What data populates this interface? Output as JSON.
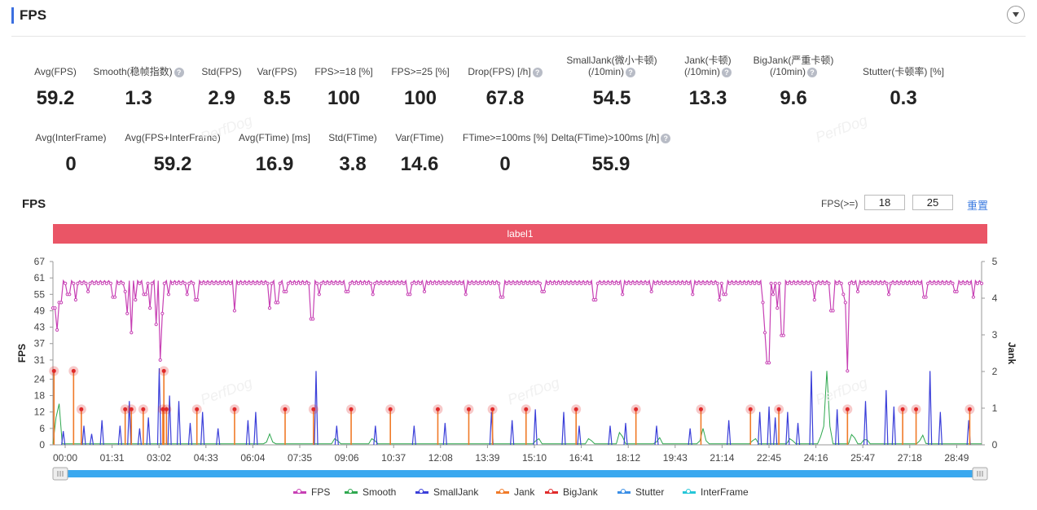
{
  "header": {
    "title": "FPS"
  },
  "stats_row1": [
    {
      "label": "Avg(FPS)",
      "value": "59.2",
      "help": false
    },
    {
      "label": "Smooth(稳帧指数)",
      "value": "1.3",
      "help": true
    },
    {
      "label": "Std(FPS)",
      "value": "2.9",
      "help": false
    },
    {
      "label": "Var(FPS)",
      "value": "8.5",
      "help": false
    },
    {
      "label": "FPS>=18 [%]",
      "value": "100",
      "help": false
    },
    {
      "label": "FPS>=25 [%]",
      "value": "100",
      "help": false
    },
    {
      "label": "Drop(FPS) [/h]",
      "value": "67.8",
      "help": true
    },
    {
      "label": "SmallJank(微小卡顿)",
      "label2": "(/10min)",
      "value": "54.5",
      "help": true
    },
    {
      "label": "Jank(卡顿)",
      "label2": "(/10min)",
      "value": "13.3",
      "help": true
    },
    {
      "label": "BigJank(严重卡顿)",
      "label2": "(/10min)",
      "value": "9.6",
      "help": true
    },
    {
      "label": "Stutter(卡顿率) [%]",
      "value": "0.3",
      "help": false
    }
  ],
  "stats_row2": [
    {
      "label": "Avg(InterFrame)",
      "value": "0",
      "help": false
    },
    {
      "label": "Avg(FPS+InterFrame)",
      "value": "59.2",
      "help": false
    },
    {
      "label": "Avg(FTime) [ms]",
      "value": "16.9",
      "help": false
    },
    {
      "label": "Std(FTime)",
      "value": "3.8",
      "help": false
    },
    {
      "label": "Var(FTime)",
      "value": "14.6",
      "help": false
    },
    {
      "label": "FTime>=100ms [%]",
      "value": "0",
      "help": false
    },
    {
      "label": "Delta(FTime)>100ms [/h]",
      "value": "55.9",
      "help": true
    }
  ],
  "help_glyph": "?",
  "watermark": "PerfDog",
  "chart_section": {
    "title": "FPS",
    "threshold_label": "FPS(>=)",
    "threshold_1": "18",
    "threshold_2": "25",
    "reset_label": "重置",
    "band_label": "label1"
  },
  "chart_data": {
    "type": "line",
    "y_left_label": "FPS",
    "y_right_label": "Jank",
    "y_left_ticks": [
      "0",
      "6",
      "12",
      "18",
      "24",
      "31",
      "37",
      "43",
      "49",
      "55",
      "61",
      "67"
    ],
    "y_right_ticks": [
      "0",
      "1",
      "2",
      "3",
      "4",
      "5"
    ],
    "ylim_left": [
      0,
      67
    ],
    "ylim_right": [
      0,
      5
    ],
    "x_ticks": [
      "00:00",
      "01:31",
      "03:02",
      "04:33",
      "06:04",
      "07:35",
      "09:06",
      "10:37",
      "12:08",
      "13:39",
      "15:10",
      "16:41",
      "18:12",
      "19:43",
      "21:14",
      "22:45",
      "24:16",
      "25:47",
      "27:18",
      "28:49"
    ],
    "x_range_seconds": [
      0,
      1800
    ],
    "fps_baseline": 60,
    "fps_dips": [
      {
        "t": 2,
        "v": 50
      },
      {
        "t": 8,
        "v": 42
      },
      {
        "t": 14,
        "v": 52
      },
      {
        "t": 30,
        "v": 55
      },
      {
        "t": 45,
        "v": 53
      },
      {
        "t": 68,
        "v": 56
      },
      {
        "t": 118,
        "v": 54
      },
      {
        "t": 140,
        "v": 56
      },
      {
        "t": 145,
        "v": 48
      },
      {
        "t": 152,
        "v": 41
      },
      {
        "t": 160,
        "v": 53
      },
      {
        "t": 178,
        "v": 55
      },
      {
        "t": 188,
        "v": 50
      },
      {
        "t": 200,
        "v": 44
      },
      {
        "t": 208,
        "v": 31
      },
      {
        "t": 213,
        "v": 48
      },
      {
        "t": 224,
        "v": 55
      },
      {
        "t": 260,
        "v": 55
      },
      {
        "t": 278,
        "v": 53
      },
      {
        "t": 352,
        "v": 49
      },
      {
        "t": 420,
        "v": 50
      },
      {
        "t": 434,
        "v": 52
      },
      {
        "t": 450,
        "v": 56
      },
      {
        "t": 502,
        "v": 46
      },
      {
        "t": 515,
        "v": 55
      },
      {
        "t": 570,
        "v": 56
      },
      {
        "t": 620,
        "v": 55
      },
      {
        "t": 690,
        "v": 55
      },
      {
        "t": 720,
        "v": 56
      },
      {
        "t": 800,
        "v": 55
      },
      {
        "t": 870,
        "v": 54
      },
      {
        "t": 950,
        "v": 56
      },
      {
        "t": 1050,
        "v": 53
      },
      {
        "t": 1105,
        "v": 55
      },
      {
        "t": 1160,
        "v": 56
      },
      {
        "t": 1240,
        "v": 55
      },
      {
        "t": 1293,
        "v": 53
      },
      {
        "t": 1302,
        "v": 55
      },
      {
        "t": 1375,
        "v": 52
      },
      {
        "t": 1380,
        "v": 41
      },
      {
        "t": 1383,
        "v": 32
      },
      {
        "t": 1386,
        "v": 30
      },
      {
        "t": 1395,
        "v": 55
      },
      {
        "t": 1403,
        "v": 50
      },
      {
        "t": 1414,
        "v": 40
      },
      {
        "t": 1475,
        "v": 53
      },
      {
        "t": 1510,
        "v": 49
      },
      {
        "t": 1531,
        "v": 55
      },
      {
        "t": 1537,
        "v": 52
      },
      {
        "t": 1540,
        "v": 27
      },
      {
        "t": 1560,
        "v": 56
      },
      {
        "t": 1620,
        "v": 55
      },
      {
        "t": 1690,
        "v": 54
      },
      {
        "t": 1750,
        "v": 56
      },
      {
        "t": 1785,
        "v": 54
      }
    ],
    "bigjank_markers": [
      {
        "t": 2,
        "v": 27
      },
      {
        "t": 40,
        "v": 27
      },
      {
        "t": 215,
        "v": 27
      },
      {
        "t": 55,
        "v": 13
      },
      {
        "t": 140,
        "v": 13
      },
      {
        "t": 152,
        "v": 13
      },
      {
        "t": 175,
        "v": 13
      },
      {
        "t": 213,
        "v": 13
      },
      {
        "t": 220,
        "v": 13
      },
      {
        "t": 279,
        "v": 13
      },
      {
        "t": 352,
        "v": 13
      },
      {
        "t": 450,
        "v": 13
      },
      {
        "t": 505,
        "v": 13
      },
      {
        "t": 578,
        "v": 13
      },
      {
        "t": 654,
        "v": 13
      },
      {
        "t": 746,
        "v": 13
      },
      {
        "t": 806,
        "v": 13
      },
      {
        "t": 852,
        "v": 13
      },
      {
        "t": 917,
        "v": 13
      },
      {
        "t": 1014,
        "v": 13
      },
      {
        "t": 1130,
        "v": 13
      },
      {
        "t": 1256,
        "v": 13
      },
      {
        "t": 1352,
        "v": 13
      },
      {
        "t": 1407,
        "v": 13
      },
      {
        "t": 1540,
        "v": 13
      },
      {
        "t": 1647,
        "v": 13
      },
      {
        "t": 1673,
        "v": 13
      },
      {
        "t": 1777,
        "v": 13
      }
    ],
    "smalljank_spikes": [
      {
        "t": 20,
        "v": 5
      },
      {
        "t": 60,
        "v": 7
      },
      {
        "t": 75,
        "v": 4
      },
      {
        "t": 95,
        "v": 9
      },
      {
        "t": 130,
        "v": 7
      },
      {
        "t": 148,
        "v": 16
      },
      {
        "t": 168,
        "v": 6
      },
      {
        "t": 185,
        "v": 10
      },
      {
        "t": 206,
        "v": 28
      },
      {
        "t": 226,
        "v": 18
      },
      {
        "t": 244,
        "v": 16
      },
      {
        "t": 266,
        "v": 8
      },
      {
        "t": 290,
        "v": 12
      },
      {
        "t": 320,
        "v": 6
      },
      {
        "t": 378,
        "v": 9
      },
      {
        "t": 393,
        "v": 12
      },
      {
        "t": 510,
        "v": 27
      },
      {
        "t": 550,
        "v": 7
      },
      {
        "t": 625,
        "v": 7
      },
      {
        "t": 700,
        "v": 7
      },
      {
        "t": 760,
        "v": 8
      },
      {
        "t": 850,
        "v": 12
      },
      {
        "t": 890,
        "v": 9
      },
      {
        "t": 935,
        "v": 13
      },
      {
        "t": 990,
        "v": 12
      },
      {
        "t": 1020,
        "v": 7
      },
      {
        "t": 1080,
        "v": 7
      },
      {
        "t": 1110,
        "v": 8
      },
      {
        "t": 1170,
        "v": 7
      },
      {
        "t": 1235,
        "v": 6
      },
      {
        "t": 1310,
        "v": 9
      },
      {
        "t": 1370,
        "v": 12
      },
      {
        "t": 1388,
        "v": 14
      },
      {
        "t": 1400,
        "v": 10
      },
      {
        "t": 1424,
        "v": 12
      },
      {
        "t": 1444,
        "v": 8
      },
      {
        "t": 1470,
        "v": 27
      },
      {
        "t": 1520,
        "v": 13
      },
      {
        "t": 1575,
        "v": 16
      },
      {
        "t": 1615,
        "v": 20
      },
      {
        "t": 1630,
        "v": 14
      },
      {
        "t": 1700,
        "v": 27
      },
      {
        "t": 1720,
        "v": 12
      },
      {
        "t": 1775,
        "v": 9
      }
    ],
    "smooth_bumps": [
      {
        "t": 10,
        "v": 20
      },
      {
        "t": 420,
        "v": 4
      },
      {
        "t": 548,
        "v": 3
      },
      {
        "t": 620,
        "v": 3
      },
      {
        "t": 940,
        "v": 3
      },
      {
        "t": 1040,
        "v": 3
      },
      {
        "t": 1100,
        "v": 6
      },
      {
        "t": 1175,
        "v": 3
      },
      {
        "t": 1260,
        "v": 6
      },
      {
        "t": 1360,
        "v": 3
      },
      {
        "t": 1430,
        "v": 3
      },
      {
        "t": 1490,
        "v": 4
      },
      {
        "t": 1500,
        "v": 27
      },
      {
        "t": 1550,
        "v": 5
      },
      {
        "t": 1575,
        "v": 3
      },
      {
        "t": 1685,
        "v": 4
      }
    ],
    "series": [
      {
        "name": "FPS",
        "color": "#c740b4"
      },
      {
        "name": "Smooth",
        "color": "#2fa84f"
      },
      {
        "name": "SmallJank",
        "color": "#3b3fd9"
      },
      {
        "name": "Jank",
        "color": "#f07a28"
      },
      {
        "name": "BigJank",
        "color": "#e02a2a"
      },
      {
        "name": "Stutter",
        "color": "#3a8ee6"
      },
      {
        "name": "InterFrame",
        "color": "#25c6d8"
      }
    ]
  }
}
